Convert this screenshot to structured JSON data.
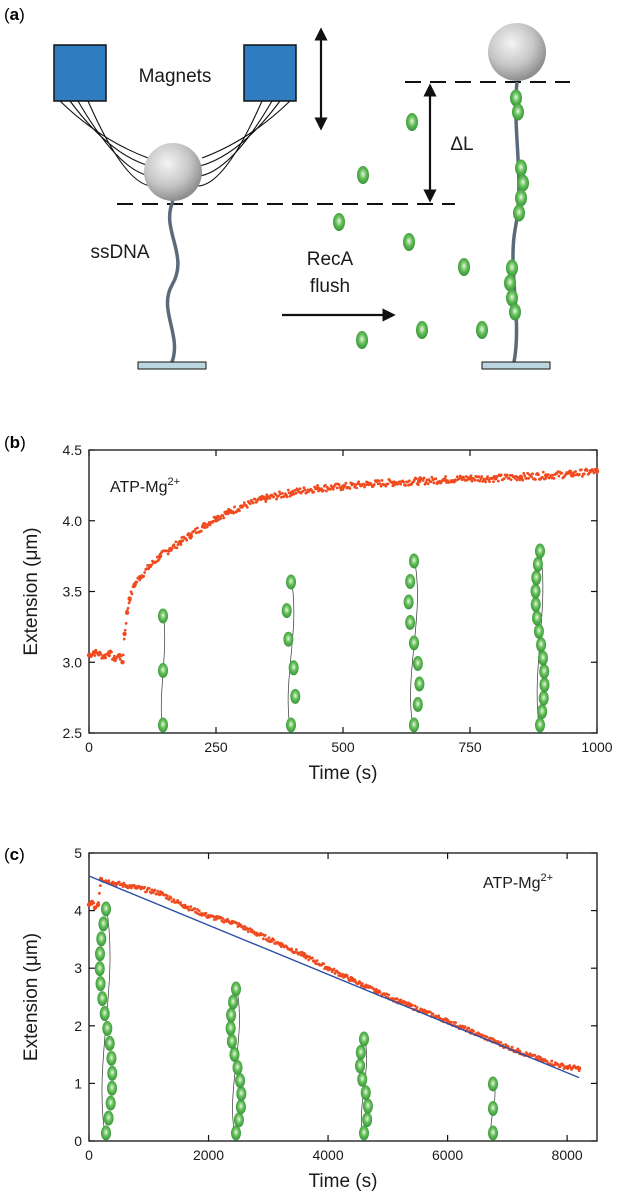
{
  "panel_a": {
    "label": "a",
    "magnets_label": "Magnets",
    "ssdna_label": "ssDNA",
    "flush_line1": "RecA",
    "flush_line2": "flush",
    "delta_label": "ΔL",
    "colors": {
      "magnet": "#2f7cc0",
      "protein": "#3aa63a",
      "dna": "#5a6a7a",
      "bead": "#c8c8c8",
      "surface": "#bcd6e0"
    }
  },
  "chart_data": [
    {
      "type": "scatter",
      "panel_label": "b",
      "annotation": "ATP-Mg",
      "annotation_sup": "2+",
      "xlabel": "Time (s)",
      "ylabel": "Extension (μm)",
      "xlim": [
        0,
        1000
      ],
      "ylim": [
        2.5,
        4.5
      ],
      "xticks": [
        0,
        250,
        500,
        750,
        1000
      ],
      "yticks": [
        2.5,
        3.0,
        3.5,
        4.0,
        4.5
      ],
      "xtick_labels": [
        "0",
        "250",
        "500",
        "750",
        "1000"
      ],
      "ytick_labels": [
        "2.5",
        "3.0",
        "3.5",
        "4.0",
        "4.5"
      ],
      "series": [
        {
          "color": "#f04a1e",
          "x": [
            0,
            10,
            20,
            30,
            40,
            50,
            60,
            66,
            70,
            75,
            80,
            90,
            100,
            120,
            140,
            160,
            180,
            200,
            225,
            250,
            275,
            300,
            350,
            400,
            450,
            500,
            550,
            600,
            650,
            700,
            750,
            800,
            850,
            900,
            950,
            1000
          ],
          "y": [
            3.05,
            3.07,
            3.06,
            3.04,
            3.07,
            3.02,
            3.05,
            3.0,
            3.2,
            3.35,
            3.45,
            3.55,
            3.6,
            3.68,
            3.75,
            3.8,
            3.85,
            3.9,
            3.96,
            4.02,
            4.06,
            4.1,
            4.16,
            4.2,
            4.23,
            4.24,
            4.26,
            4.27,
            4.28,
            4.29,
            4.3,
            4.3,
            4.31,
            4.32,
            4.33,
            4.35
          ]
        }
      ]
    },
    {
      "type": "scatter",
      "panel_label": "c",
      "annotation": "ATP-Mg",
      "annotation_sup": "2+",
      "xlabel": "Time (s)",
      "ylabel": "Extension (μm)",
      "xlim": [
        0,
        8500
      ],
      "ylim": [
        0,
        5
      ],
      "xticks": [
        0,
        2000,
        4000,
        6000,
        8000
      ],
      "yticks": [
        0,
        1,
        2,
        3,
        4,
        5
      ],
      "xtick_labels": [
        "0",
        "2000",
        "4000",
        "6000",
        "8000"
      ],
      "ytick_labels": [
        "0",
        "1",
        "2",
        "3",
        "4",
        "5"
      ],
      "series": [
        {
          "color": "#f04a1e",
          "x": [
            0,
            50,
            100,
            150,
            200,
            400,
            800,
            1200,
            1600,
            2000,
            2400,
            2800,
            3200,
            3600,
            4000,
            4400,
            4800,
            5200,
            5600,
            6000,
            6400,
            6800,
            7200,
            7600,
            8000,
            8200
          ],
          "y": [
            4.1,
            4.15,
            4.05,
            4.1,
            4.55,
            4.48,
            4.4,
            4.3,
            4.08,
            3.9,
            3.8,
            3.6,
            3.42,
            3.22,
            3.0,
            2.8,
            2.6,
            2.42,
            2.25,
            2.08,
            1.9,
            1.72,
            1.55,
            1.4,
            1.28,
            1.26
          ]
        },
        {
          "color": "#2b4fa8",
          "x": [
            0,
            8200
          ],
          "y": [
            4.6,
            1.1
          ]
        }
      ]
    }
  ]
}
